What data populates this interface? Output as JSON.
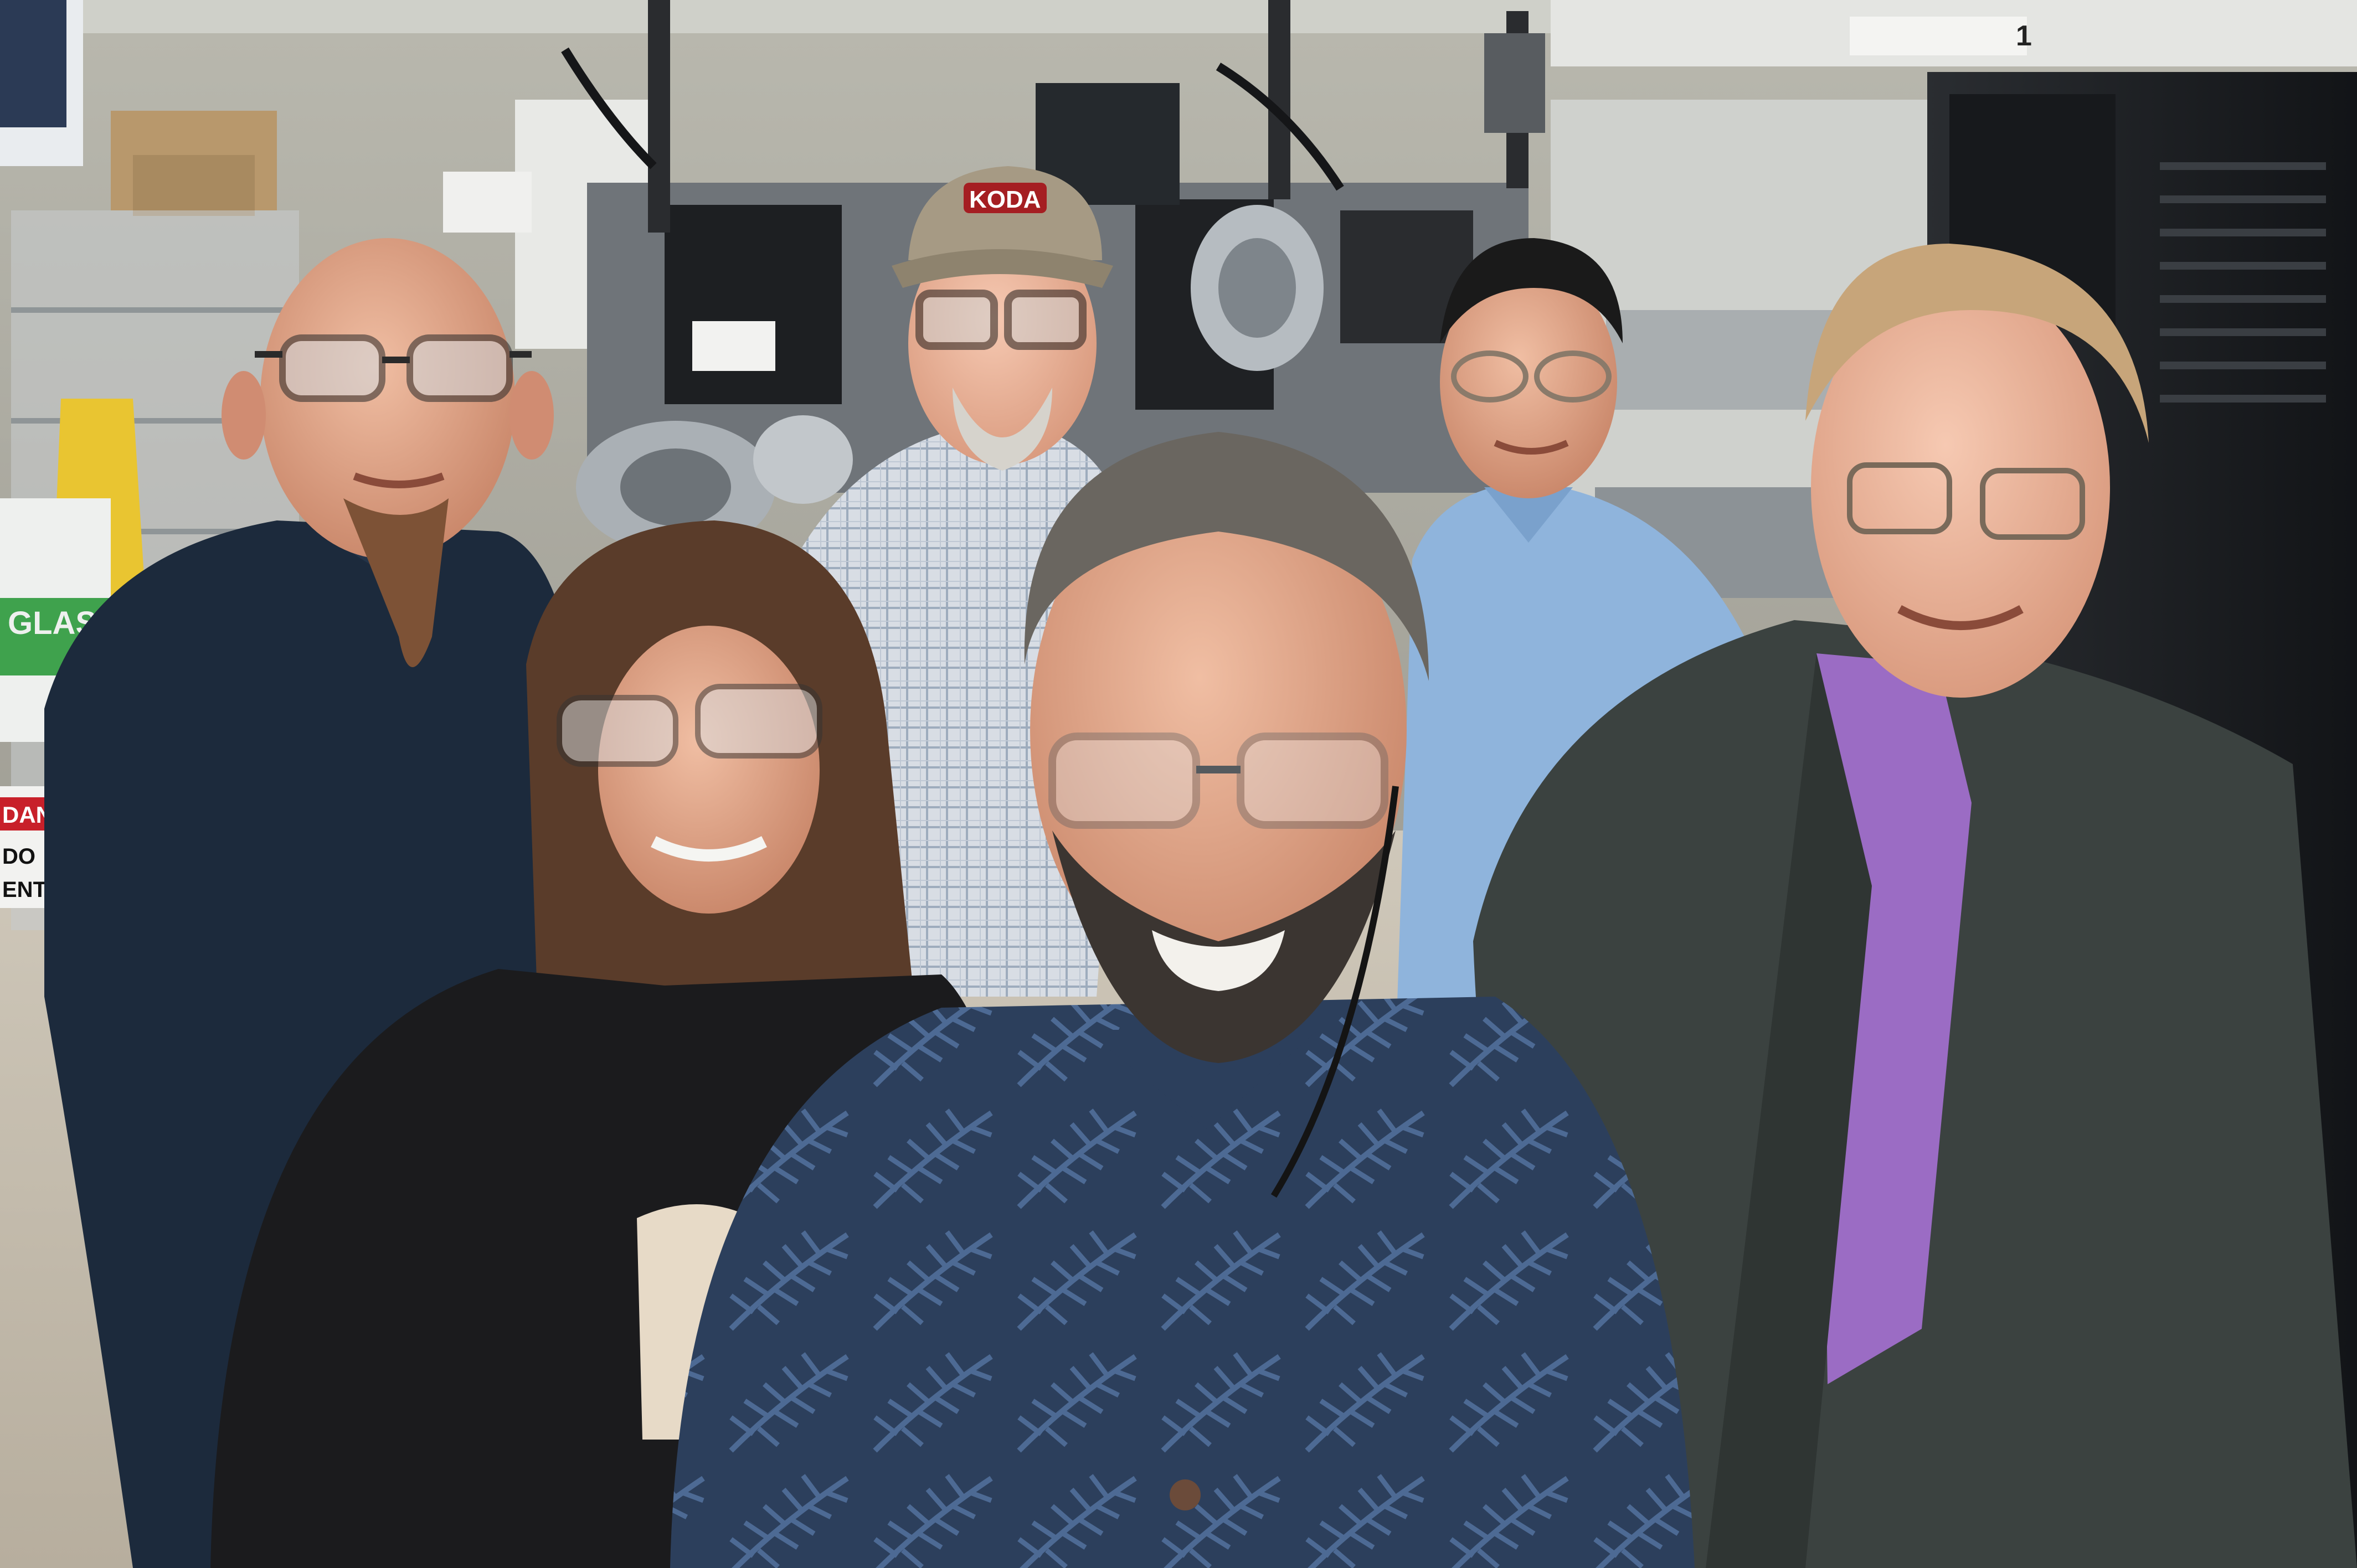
{
  "scene": {
    "kind": "photograph",
    "setting": "laboratory",
    "people_count": 6
  },
  "signs": {
    "glass_bin": "GLASS",
    "danger_sign_top": "DANG",
    "danger_sign_left": "DO",
    "danger_sign_right": "ENT",
    "cap_logo": "KODA",
    "ceiling_sign": "1"
  },
  "palette": {
    "floor": "#c9c2b4",
    "back_wall": "#a9a69a",
    "equipment_black": "#1b1d20",
    "steel": "#9aa0a4",
    "shirt_navy": "#1c2a3c",
    "shirt_blue": "#8fb4dc",
    "shirt_purple": "#9b6cc4",
    "jacket_gray": "#3b4240",
    "skin": "#d99e84",
    "cap_khaki": "#a69a84"
  }
}
